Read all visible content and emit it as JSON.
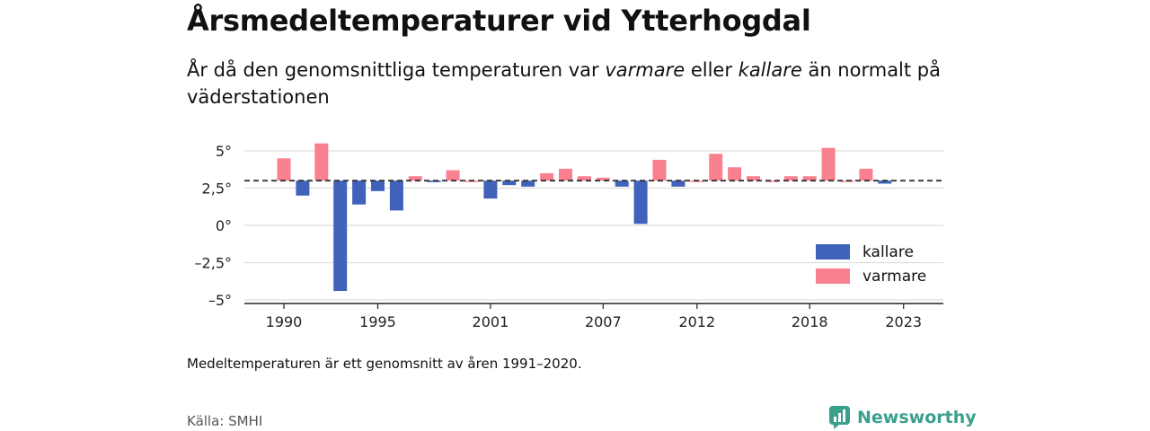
{
  "title": "Årsmedeltemperaturer vid Ytterhogdal",
  "subtitle": {
    "part1": "År då den genomsnittliga temperaturen var ",
    "em1": "varmare",
    "part2": " eller ",
    "em2": "kallare",
    "part3": " än normalt på väderstationen"
  },
  "note": "Medeltemperaturen är ett genomsnitt av åren 1991–2020.",
  "source": "Källa: SMHI",
  "brand": {
    "name": "Newsworthy",
    "icon": "newsworthy-logo-icon",
    "color": "#3aa08c"
  },
  "colors": {
    "kallare": "#4062bb",
    "varmare": "#f9808f",
    "grid": "#dddddd",
    "baseline": "#333333"
  },
  "chart_data": {
    "type": "bar",
    "baseline": 3.0,
    "baseline_style": "dashed",
    "ylim": [
      -5,
      6
    ],
    "yticks": [
      5,
      2.5,
      0,
      -2.5,
      -5
    ],
    "ytick_labels": [
      "5°",
      "2,5°",
      "0°",
      "–2,5°",
      "–5°"
    ],
    "xticks": [
      1990,
      1995,
      2001,
      2007,
      2012,
      2018,
      2023
    ],
    "xtick_labels": [
      "1990",
      "1995",
      "2001",
      "2007",
      "2012",
      "2018",
      "2023"
    ],
    "x": [
      1990,
      1991,
      1992,
      1993,
      1994,
      1995,
      1996,
      1997,
      1998,
      1999,
      2000,
      2001,
      2002,
      2003,
      2004,
      2005,
      2006,
      2007,
      2008,
      2009,
      2010,
      2011,
      2012,
      2013,
      2014,
      2015,
      2016,
      2017,
      2018,
      2019,
      2020,
      2021,
      2022,
      2023
    ],
    "values": [
      4.5,
      2.0,
      5.5,
      -4.4,
      1.4,
      2.3,
      1.0,
      3.3,
      2.9,
      3.7,
      3.0,
      1.8,
      2.7,
      2.6,
      3.5,
      3.8,
      3.3,
      3.2,
      2.6,
      0.1,
      4.4,
      2.6,
      3.0,
      4.8,
      3.9,
      3.3,
      3.0,
      3.3,
      3.3,
      5.2,
      3.0,
      3.8,
      2.8,
      null
    ],
    "grid": true,
    "legend": {
      "position": "bottom-right",
      "entries": [
        {
          "name": "kallare",
          "color": "#4062bb"
        },
        {
          "name": "varmare",
          "color": "#f9808f"
        }
      ]
    }
  }
}
